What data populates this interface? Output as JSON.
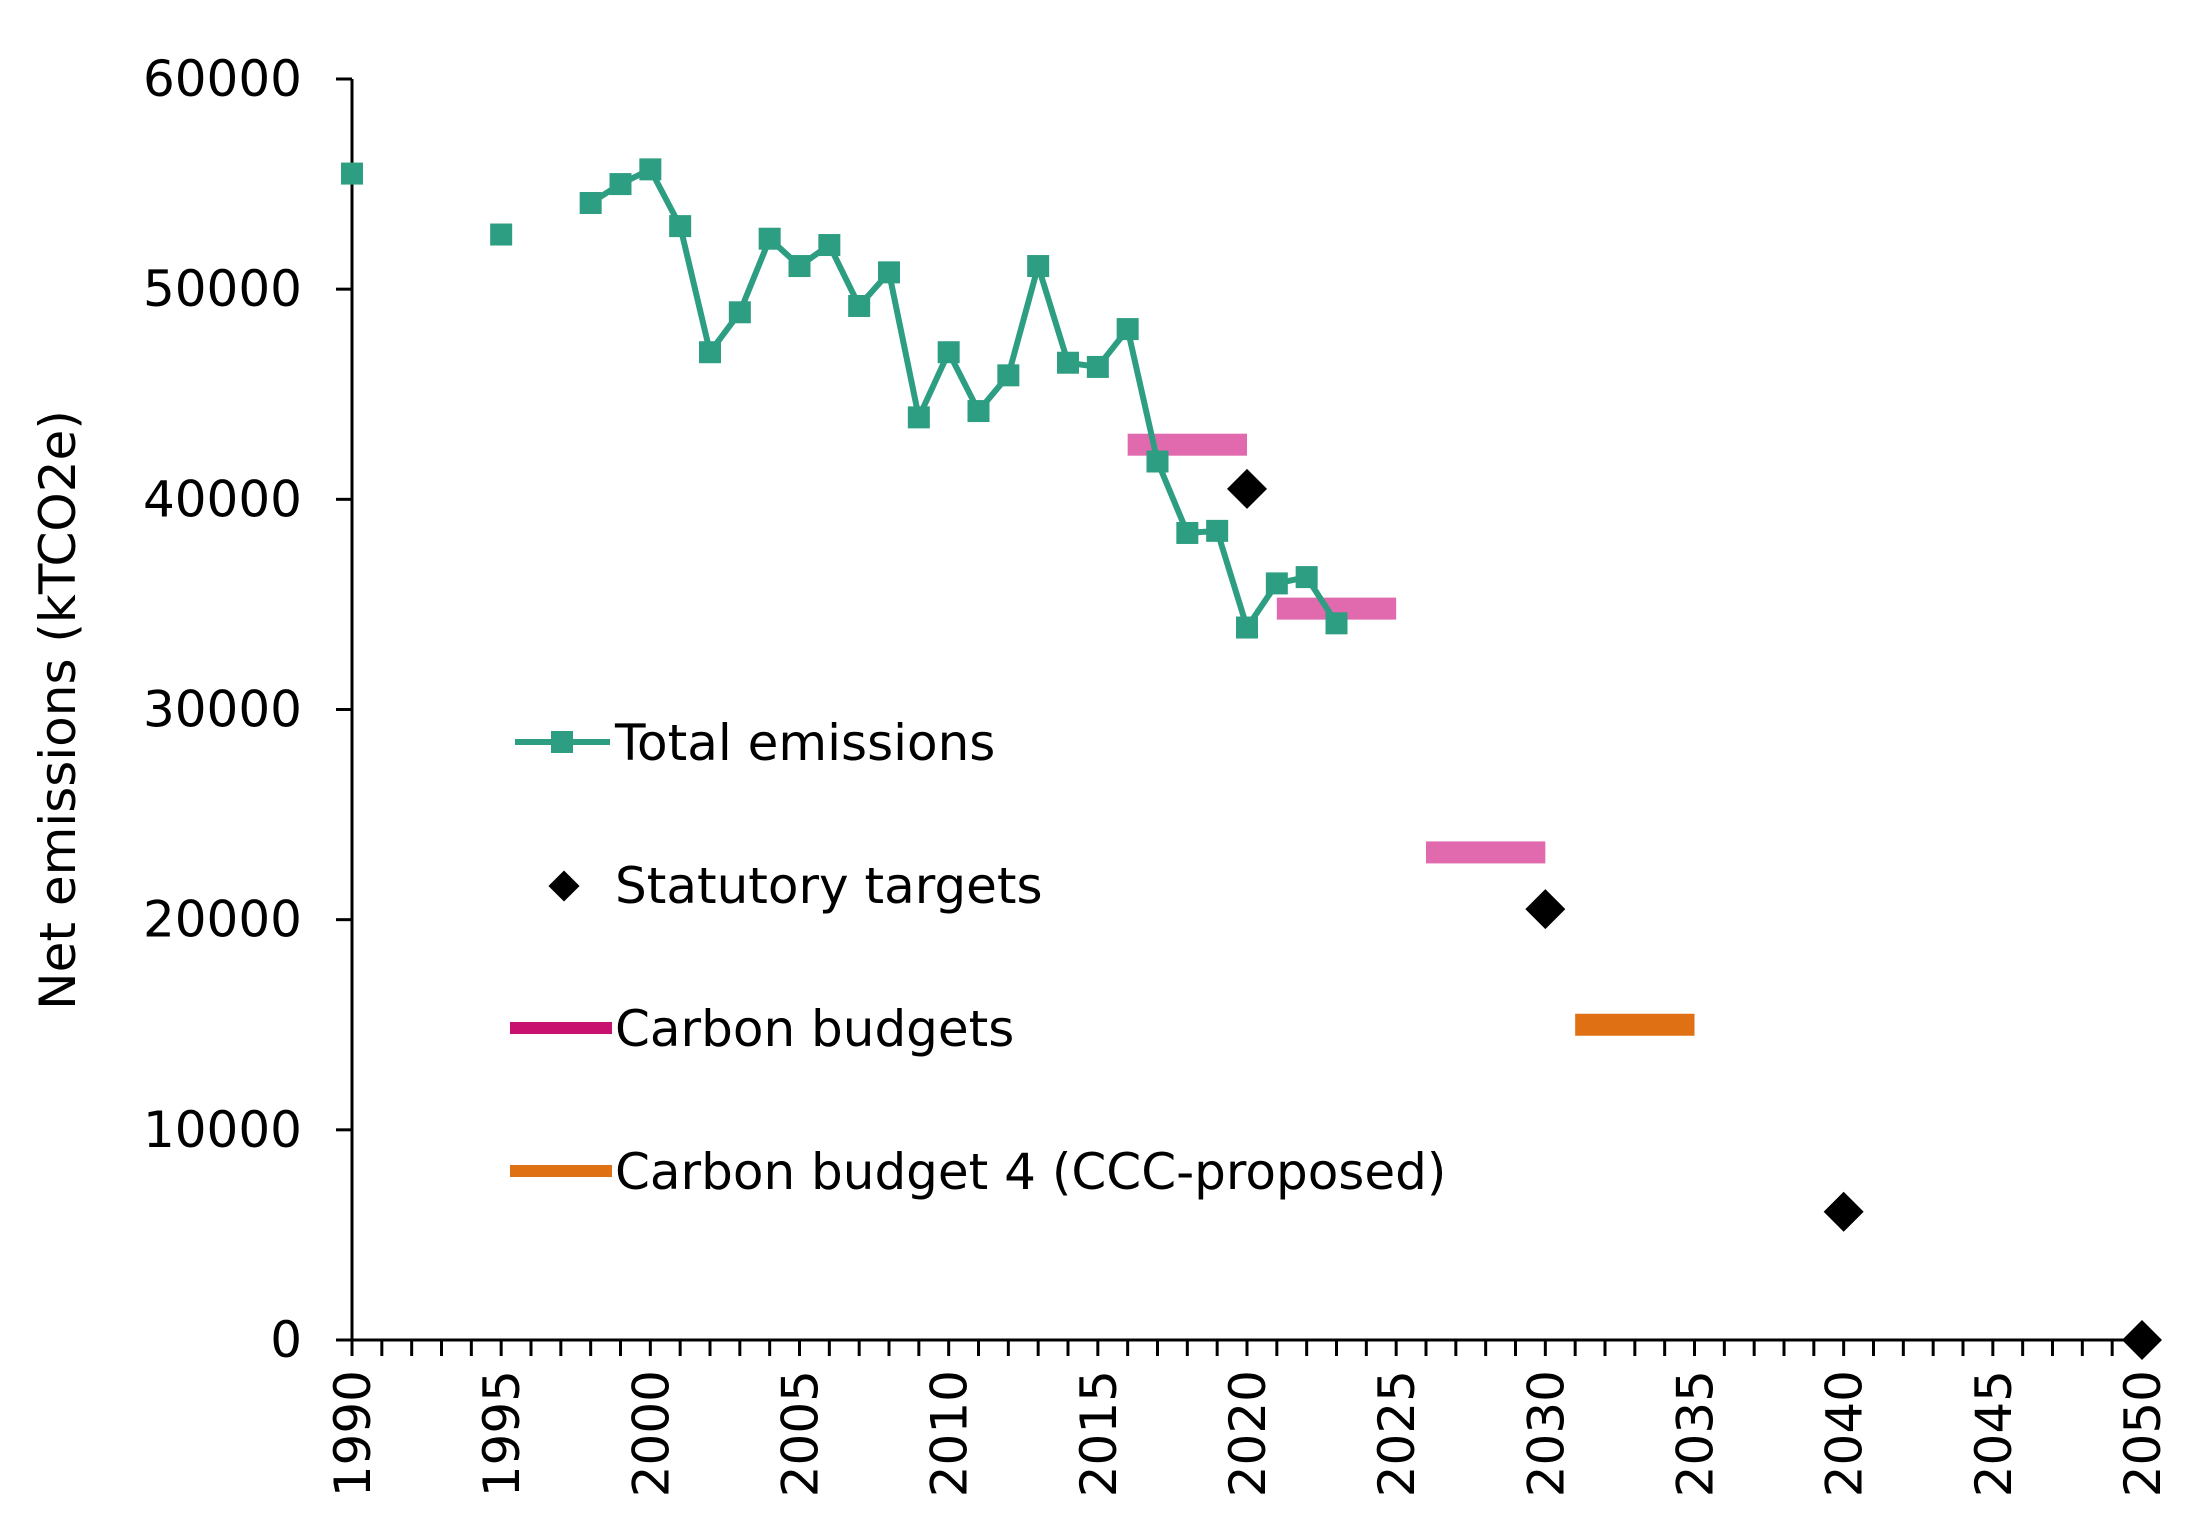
{
  "chart_data": {
    "type": "line",
    "title": "",
    "xlabel": "",
    "ylabel": "Net emissions (kTCO2e)",
    "xlim": [
      1990,
      2050
    ],
    "ylim": [
      0,
      60000
    ],
    "x_ticks": [
      "1990",
      "1995",
      "2000",
      "2005",
      "2010",
      "2015",
      "2020",
      "2025",
      "2030",
      "2035",
      "2040",
      "2045",
      "2050"
    ],
    "y_ticks": [
      "0",
      "10000",
      "20000",
      "30000",
      "40000",
      "50000",
      "60000"
    ],
    "grid": false,
    "legend_position": "center-left",
    "colors": {
      "total": "#2e9e82",
      "targets": "#000000",
      "budgets": "#e06aad",
      "budgets_legend": "#c8106e",
      "cb4": "#e07014"
    },
    "series": [
      {
        "name": "Total emissions",
        "type": "line",
        "points": [
          [
            1990,
            55500
          ],
          [
            1995,
            52600
          ],
          [
            1998,
            54100
          ],
          [
            1999,
            55000
          ],
          [
            2000,
            55700
          ],
          [
            2001,
            53000
          ],
          [
            2002,
            47000
          ],
          [
            2003,
            48900
          ],
          [
            2004,
            52400
          ],
          [
            2005,
            51100
          ],
          [
            2006,
            52100
          ],
          [
            2007,
            49200
          ],
          [
            2008,
            50800
          ],
          [
            2009,
            43900
          ],
          [
            2010,
            47000
          ],
          [
            2011,
            44200
          ],
          [
            2012,
            45900
          ],
          [
            2013,
            51100
          ],
          [
            2014,
            46500
          ],
          [
            2015,
            46300
          ],
          [
            2016,
            48100
          ],
          [
            2017,
            41800
          ],
          [
            2018,
            38400
          ],
          [
            2019,
            38500
          ],
          [
            2020,
            33900
          ],
          [
            2021,
            36000
          ],
          [
            2022,
            36300
          ],
          [
            2023,
            34100
          ]
        ]
      },
      {
        "name": "Statutory targets",
        "type": "scatter",
        "points": [
          [
            2020,
            40500
          ],
          [
            2030,
            20500
          ],
          [
            2040,
            6100
          ],
          [
            2050,
            0
          ]
        ]
      },
      {
        "name": "Carbon budgets",
        "type": "segment",
        "segments": [
          {
            "x": [
              2016,
              2020
            ],
            "y": 42600
          },
          {
            "x": [
              2021,
              2025
            ],
            "y": 34800
          },
          {
            "x": [
              2026,
              2030
            ],
            "y": 23200
          }
        ]
      },
      {
        "name": "Carbon budget 4 (CCC-proposed)",
        "type": "segment",
        "segments": [
          {
            "x": [
              2031,
              2035
            ],
            "y": 15000
          }
        ]
      }
    ]
  }
}
